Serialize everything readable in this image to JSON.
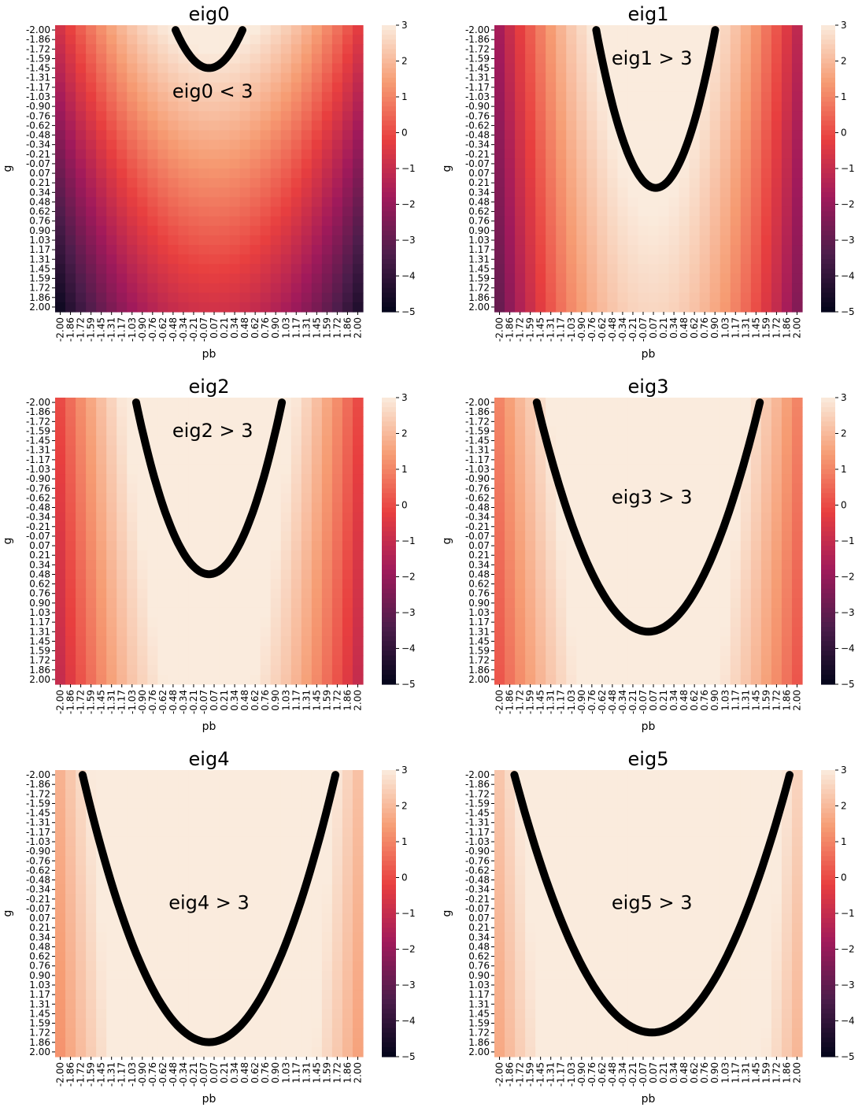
{
  "figure": {
    "colormap": [
      "#03051a",
      "#4c1d4b",
      "#a11a5b",
      "#e83f3f",
      "#f69c73",
      "#faebdd"
    ],
    "boundary_color": "#000000"
  },
  "chart_data": [
    {
      "type": "heatmap",
      "title": "eig0",
      "xlabel": "pb",
      "ylabel": "g",
      "x_ticks": [
        "-2.00",
        "-1.86",
        "-1.72",
        "-1.59",
        "-1.45",
        "-1.31",
        "-1.17",
        "-1.03",
        "-0.90",
        "-0.76",
        "-0.62",
        "-0.48",
        "-0.34",
        "-0.21",
        "-0.07",
        "0.07",
        "0.21",
        "0.34",
        "0.48",
        "0.62",
        "0.76",
        "0.90",
        "1.03",
        "1.17",
        "1.31",
        "1.45",
        "1.59",
        "1.72",
        "1.86",
        "2.00"
      ],
      "y_ticks": [
        "-2.00",
        "-1.86",
        "-1.72",
        "-1.59",
        "-1.45",
        "-1.31",
        "-1.17",
        "-1.03",
        "-0.90",
        "-0.76",
        "-0.62",
        "-0.48",
        "-0.34",
        "-0.21",
        "-0.07",
        "0.07",
        "0.21",
        "0.34",
        "0.48",
        "0.62",
        "0.76",
        "0.90",
        "1.03",
        "1.17",
        "1.31",
        "1.45",
        "1.59",
        "1.72",
        "1.86",
        "2.00"
      ],
      "colorbar": {
        "range": [
          -5,
          3
        ],
        "ticks": [
          "3",
          "2",
          "1",
          "0",
          "−1",
          "−2",
          "−3",
          "−4",
          "−5"
        ]
      },
      "field": {
        "center_pb": 0.05,
        "curvature": 0.95,
        "top_value": 3.3,
        "g_slope": 1.0,
        "min": -5.5
      },
      "boundary": {
        "vertex_g": -1.45,
        "g_top": -2.0,
        "half_width": 0.45,
        "center_pb": 0.0
      },
      "annotation": {
        "text": "eig0 < 3",
        "pb": 0.05,
        "g": -1.1
      }
    },
    {
      "type": "heatmap",
      "title": "eig1",
      "xlabel": "pb",
      "ylabel": "g",
      "x_ticks": [
        "-2.00",
        "-1.86",
        "-1.72",
        "-1.59",
        "-1.45",
        "-1.31",
        "-1.17",
        "-1.03",
        "-0.90",
        "-0.76",
        "-0.62",
        "-0.48",
        "-0.34",
        "-0.21",
        "-0.07",
        "0.07",
        "0.21",
        "0.34",
        "0.48",
        "0.62",
        "0.76",
        "0.90",
        "1.03",
        "1.17",
        "1.31",
        "1.45",
        "1.59",
        "1.72",
        "1.86",
        "2.00"
      ],
      "y_ticks": [
        "-2.00",
        "-1.86",
        "-1.72",
        "-1.59",
        "-1.45",
        "-1.31",
        "-1.17",
        "-1.03",
        "-0.90",
        "-0.76",
        "-0.62",
        "-0.48",
        "-0.34",
        "-0.21",
        "-0.07",
        "0.07",
        "0.21",
        "0.34",
        "0.48",
        "0.62",
        "0.76",
        "0.90",
        "1.03",
        "1.17",
        "1.31",
        "1.45",
        "1.59",
        "1.72",
        "1.86",
        "2.00"
      ],
      "colorbar": {
        "range": [
          -5,
          3
        ],
        "ticks": [
          "3",
          "2",
          "1",
          "0",
          "−1",
          "−2",
          "−3",
          "−4",
          "−5"
        ]
      },
      "field": {
        "center_pb": 0.05,
        "curvature": 1.3,
        "top_value": 3.8,
        "g_slope": 0.3,
        "min": -4.2
      },
      "boundary": {
        "vertex_g": 0.28,
        "g_top": -2.0,
        "half_width": 0.8,
        "center_pb": 0.1
      },
      "annotation": {
        "text": "eig1 > 3",
        "pb": 0.05,
        "g": -1.58
      }
    },
    {
      "type": "heatmap",
      "title": "eig2",
      "xlabel": "pb",
      "ylabel": "g",
      "x_ticks": [
        "-2.00",
        "-1.86",
        "-1.72",
        "-1.59",
        "-1.45",
        "-1.31",
        "-1.17",
        "-1.03",
        "-0.90",
        "-0.76",
        "-0.62",
        "-0.48",
        "-0.34",
        "-0.21",
        "-0.07",
        "0.07",
        "0.21",
        "0.34",
        "0.48",
        "0.62",
        "0.76",
        "0.90",
        "1.03",
        "1.17",
        "1.31",
        "1.45",
        "1.59",
        "1.72",
        "1.86",
        "2.00"
      ],
      "y_ticks": [
        "-2.00",
        "-1.86",
        "-1.72",
        "-1.59",
        "-1.45",
        "-1.31",
        "-1.17",
        "-1.03",
        "-0.90",
        "-0.76",
        "-0.62",
        "-0.48",
        "-0.34",
        "-0.21",
        "-0.07",
        "0.07",
        "0.21",
        "0.34",
        "0.48",
        "0.62",
        "0.76",
        "0.90",
        "1.03",
        "1.17",
        "1.31",
        "1.45",
        "1.59",
        "1.72",
        "1.86",
        "2.00"
      ],
      "colorbar": {
        "range": [
          -5,
          3
        ],
        "ticks": [
          "3",
          "2",
          "1",
          "0",
          "−1",
          "−2",
          "−3",
          "−4",
          "−5"
        ]
      },
      "field": {
        "center_pb": 0.0,
        "curvature": 1.1,
        "top_value": 4.4,
        "g_slope": 0.25,
        "min": -4.5
      },
      "boundary": {
        "vertex_g": 0.48,
        "g_top": -2.0,
        "half_width": 0.98,
        "center_pb": 0.0
      },
      "annotation": {
        "text": "eig2 > 3",
        "pb": 0.05,
        "g": -1.58
      }
    },
    {
      "type": "heatmap",
      "title": "eig3",
      "xlabel": "pb",
      "ylabel": "g",
      "x_ticks": [
        "-2.00",
        "-1.86",
        "-1.72",
        "-1.59",
        "-1.45",
        "-1.31",
        "-1.17",
        "-1.03",
        "-0.90",
        "-0.76",
        "-0.62",
        "-0.48",
        "-0.34",
        "-0.21",
        "-0.07",
        "0.07",
        "0.21",
        "0.34",
        "0.48",
        "0.62",
        "0.76",
        "0.90",
        "1.03",
        "1.17",
        "1.31",
        "1.45",
        "1.59",
        "1.72",
        "1.86",
        "2.00"
      ],
      "y_ticks": [
        "-2.00",
        "-1.86",
        "-1.72",
        "-1.59",
        "-1.45",
        "-1.31",
        "-1.17",
        "-1.03",
        "-0.90",
        "-0.76",
        "-0.62",
        "-0.48",
        "-0.34",
        "-0.21",
        "-0.07",
        "0.07",
        "0.21",
        "0.34",
        "0.48",
        "0.62",
        "0.76",
        "0.90",
        "1.03",
        "1.17",
        "1.31",
        "1.45",
        "1.59",
        "1.72",
        "1.86",
        "2.00"
      ],
      "colorbar": {
        "range": [
          -5,
          3
        ],
        "ticks": [
          "3",
          "2",
          "1",
          "0",
          "−1",
          "−2",
          "−3",
          "−4",
          "−5"
        ]
      },
      "field": {
        "center_pb": 0.0,
        "curvature": 0.9,
        "top_value": 4.6,
        "g_slope": 0.2,
        "min": -4.5
      },
      "boundary": {
        "vertex_g": 1.31,
        "g_top": -2.0,
        "half_width": 1.5,
        "center_pb": 0.0
      },
      "annotation": {
        "text": "eig3 > 3",
        "pb": 0.05,
        "g": -0.62
      }
    },
    {
      "type": "heatmap",
      "title": "eig4",
      "xlabel": "pb",
      "ylabel": "g",
      "x_ticks": [
        "-2.00",
        "-1.86",
        "-1.72",
        "-1.59",
        "-1.45",
        "-1.31",
        "-1.17",
        "-1.03",
        "-0.90",
        "-0.76",
        "-0.62",
        "-0.48",
        "-0.34",
        "-0.21",
        "-0.07",
        "0.07",
        "0.21",
        "0.34",
        "0.48",
        "0.62",
        "0.76",
        "0.90",
        "1.03",
        "1.17",
        "1.31",
        "1.45",
        "1.59",
        "1.72",
        "1.86",
        "2.00"
      ],
      "y_ticks": [
        "-2.00",
        "-1.86",
        "-1.72",
        "-1.59",
        "-1.45",
        "-1.31",
        "-1.17",
        "-1.03",
        "-0.90",
        "-0.76",
        "-0.62",
        "-0.48",
        "-0.34",
        "-0.21",
        "-0.07",
        "0.07",
        "0.21",
        "0.34",
        "0.48",
        "0.62",
        "0.76",
        "0.90",
        "1.03",
        "1.17",
        "1.31",
        "1.45",
        "1.59",
        "1.72",
        "1.86",
        "2.00"
      ],
      "colorbar": {
        "range": [
          -5,
          3
        ],
        "ticks": [
          "3",
          "2",
          "1",
          "0",
          "−1",
          "−2",
          "−3",
          "−4",
          "−5"
        ]
      },
      "field": {
        "center_pb": 0.05,
        "curvature": 0.75,
        "top_value": 5.0,
        "g_slope": 0.15,
        "min": -4.2
      },
      "boundary": {
        "vertex_g": 1.86,
        "g_top": -2.0,
        "half_width": 1.7,
        "center_pb": 0.0
      },
      "annotation": {
        "text": "eig4 > 3",
        "pb": 0.0,
        "g": -0.14
      }
    },
    {
      "type": "heatmap",
      "title": "eig5",
      "xlabel": "pb",
      "ylabel": "g",
      "x_ticks": [
        "-2.00",
        "-1.86",
        "-1.72",
        "-1.59",
        "-1.45",
        "-1.31",
        "-1.17",
        "-1.03",
        "-0.90",
        "-0.76",
        "-0.62",
        "-0.48",
        "-0.34",
        "-0.21",
        "-0.07",
        "0.07",
        "0.21",
        "0.34",
        "0.48",
        "0.62",
        "0.76",
        "0.90",
        "1.03",
        "1.17",
        "1.31",
        "1.45",
        "1.59",
        "1.72",
        "1.86",
        "2.00"
      ],
      "y_ticks": [
        "-2.00",
        "-1.86",
        "-1.72",
        "-1.59",
        "-1.45",
        "-1.31",
        "-1.17",
        "-1.03",
        "-0.90",
        "-0.76",
        "-0.62",
        "-0.48",
        "-0.34",
        "-0.21",
        "-0.07",
        "0.07",
        "0.21",
        "0.34",
        "0.48",
        "0.62",
        "0.76",
        "0.90",
        "1.03",
        "1.17",
        "1.31",
        "1.45",
        "1.59",
        "1.72",
        "1.86",
        "2.00"
      ],
      "colorbar": {
        "range": [
          -5,
          3
        ],
        "ticks": [
          "3",
          "2",
          "1",
          "0",
          "−1",
          "−2",
          "−3",
          "−4",
          "−5"
        ]
      },
      "field": {
        "center_pb": 0.05,
        "curvature": 0.7,
        "top_value": 5.2,
        "g_slope": 0.15,
        "min": -4.0
      },
      "boundary": {
        "vertex_g": 1.72,
        "g_top": -2.0,
        "half_width": 1.85,
        "center_pb": 0.05
      },
      "annotation": {
        "text": "eig5 > 3",
        "pb": 0.05,
        "g": -0.14
      }
    }
  ]
}
